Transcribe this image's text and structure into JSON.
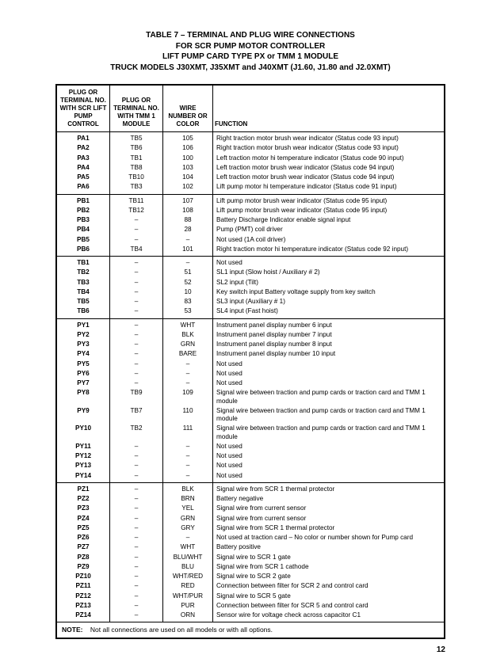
{
  "title": {
    "line1": "TABLE 7 – TERMINAL AND PLUG WIRE CONNECTIONS",
    "line2": "FOR SCR PUMP MOTOR CONTROLLER",
    "line3": "LIFT PUMP CARD TYPE PX or TMM 1 MODULE",
    "line4": "TRUCK MODELS J30XMT, J35XMT and J40XMT (J1.60, J1.80 and J2.0XMT)"
  },
  "headers": {
    "c1": "PLUG OR TERMINAL NO. WITH SCR LIFT PUMP CONTROL",
    "c2": "PLUG OR TERMINAL NO. WITH TMM 1 MODULE",
    "c3": "WIRE NUMBER OR COLOR",
    "c4": "FUNCTION"
  },
  "sections": [
    [
      {
        "c1": "PA1",
        "c2": "TB5",
        "c3": "105",
        "c4": "Right traction motor brush wear indicator (Status code 93 input)"
      },
      {
        "c1": "PA2",
        "c2": "TB6",
        "c3": "106",
        "c4": "Right traction motor brush wear indicator (Status code 93 input)"
      },
      {
        "c1": "PA3",
        "c2": "TB1",
        "c3": "100",
        "c4": "Left traction motor hi temperature indicator (Status code 90 input)"
      },
      {
        "c1": "PA4",
        "c2": "TB8",
        "c3": "103",
        "c4": "Left traction motor brush wear indicator (Status code 94 input)"
      },
      {
        "c1": "PA5",
        "c2": "TB10",
        "c3": "104",
        "c4": "Left traction motor brush wear indicator (Status code 94 input)"
      },
      {
        "c1": "PA6",
        "c2": "TB3",
        "c3": "102",
        "c4": "Lift pump motor hi temperature indicator (Status code 91 input)"
      }
    ],
    [
      {
        "c1": "PB1",
        "c2": "TB11",
        "c3": "107",
        "c4": "Lift pump motor brush wear indicator (Status code 95 input)"
      },
      {
        "c1": "PB2",
        "c2": "TB12",
        "c3": "108",
        "c4": "Lift pump motor brush wear indicator (Status code 95 input)"
      },
      {
        "c1": "PB3",
        "c2": "–",
        "c3": "88",
        "c4": "Battery Discharge Indicator enable signal input"
      },
      {
        "c1": "PB4",
        "c2": "–",
        "c3": "28",
        "c4": "Pump (PMT) coil driver"
      },
      {
        "c1": "PB5",
        "c2": "–",
        "c3": "–",
        "c4": "Not used (1A coil driver)"
      },
      {
        "c1": "PB6",
        "c2": "TB4",
        "c3": "101",
        "c4": "Right traction motor hi temperature indicator (Status code 92 input)"
      }
    ],
    [
      {
        "c1": "TB1",
        "c2": "–",
        "c3": "–",
        "c4": "Not used"
      },
      {
        "c1": "TB2",
        "c2": "–",
        "c3": "51",
        "c4": "SL1 input (Slow hoist / Auxiliary # 2)"
      },
      {
        "c1": "TB3",
        "c2": "–",
        "c3": "52",
        "c4": "SL2 input (Tilt)"
      },
      {
        "c1": "TB4",
        "c2": "–",
        "c3": "10",
        "c4": "Key switch input Battery voltage supply from key switch"
      },
      {
        "c1": "TB5",
        "c2": "–",
        "c3": "83",
        "c4": "SL3 input (Auxiliary # 1)"
      },
      {
        "c1": "TB6",
        "c2": "–",
        "c3": "53",
        "c4": "SL4 input (Fast hoist)"
      }
    ],
    [
      {
        "c1": "PY1",
        "c2": "–",
        "c3": "WHT",
        "c4": "Instrument panel display number 6 input"
      },
      {
        "c1": "PY2",
        "c2": "–",
        "c3": "BLK",
        "c4": "Instrument panel display number 7 input"
      },
      {
        "c1": "PY3",
        "c2": "–",
        "c3": "GRN",
        "c4": "Instrument panel display number 8 input"
      },
      {
        "c1": "PY4",
        "c2": "–",
        "c3": "BARE",
        "c4": "Instrument panel display number 10 input"
      },
      {
        "c1": "PY5",
        "c2": "–",
        "c3": "–",
        "c4": "Not used"
      },
      {
        "c1": "PY6",
        "c2": "–",
        "c3": "–",
        "c4": "Not used"
      },
      {
        "c1": "PY7",
        "c2": "–",
        "c3": "–",
        "c4": "Not used"
      },
      {
        "c1": "PY8",
        "c2": "TB9",
        "c3": "109",
        "c4": "Signal wire between traction and pump cards or traction card and TMM 1 module"
      },
      {
        "c1": "PY9",
        "c2": "TB7",
        "c3": "110",
        "c4": "Signal wire between traction and pump cards or traction card and TMM 1 module"
      },
      {
        "c1": "PY10",
        "c2": "TB2",
        "c3": "111",
        "c4": "Signal wire between traction and pump cards or traction card and TMM 1 module"
      },
      {
        "c1": "PY11",
        "c2": "–",
        "c3": "–",
        "c4": "Not used"
      },
      {
        "c1": "PY12",
        "c2": "–",
        "c3": "–",
        "c4": "Not used"
      },
      {
        "c1": "PY13",
        "c2": "–",
        "c3": "–",
        "c4": "Not used"
      },
      {
        "c1": "PY14",
        "c2": "–",
        "c3": "–",
        "c4": "Not used"
      }
    ],
    [
      {
        "c1": "PZ1",
        "c2": "–",
        "c3": "BLK",
        "c4": "Signal wire from SCR 1 thermal protector"
      },
      {
        "c1": "PZ2",
        "c2": "–",
        "c3": "BRN",
        "c4": "Battery negative"
      },
      {
        "c1": "PZ3",
        "c2": "–",
        "c3": "YEL",
        "c4": "Signal wire from current sensor"
      },
      {
        "c1": "PZ4",
        "c2": "–",
        "c3": "GRN",
        "c4": "Signal wire from current sensor"
      },
      {
        "c1": "PZ5",
        "c2": "–",
        "c3": "GRY",
        "c4": "Signal wire from SCR 1 thermal protector"
      },
      {
        "c1": "PZ6",
        "c2": "–",
        "c3": "–",
        "c4": "Not used at traction card – No color or number shown for Pump card"
      },
      {
        "c1": "PZ7",
        "c2": "–",
        "c3": "WHT",
        "c4": "Battery positive"
      },
      {
        "c1": "PZ8",
        "c2": "–",
        "c3": "BLU/WHT",
        "c4": "Signal wire to SCR 1 gate"
      },
      {
        "c1": "PZ9",
        "c2": "–",
        "c3": "BLU",
        "c4": "Signal wire from SCR 1 cathode"
      },
      {
        "c1": "PZ10",
        "c2": "–",
        "c3": "WHT/RED",
        "c4": "Signal wire to SCR 2 gate"
      },
      {
        "c1": "PZ11",
        "c2": "–",
        "c3": "RED",
        "c4": "Connection between filter for SCR 2 and control card"
      },
      {
        "c1": "PZ12",
        "c2": "–",
        "c3": "WHT/PUR",
        "c4": "Signal wire to SCR 5 gate"
      },
      {
        "c1": "PZ13",
        "c2": "–",
        "c3": "PUR",
        "c4": "Connection between filter for SCR 5 and control card"
      },
      {
        "c1": "PZ14",
        "c2": "–",
        "c3": "ORN",
        "c4": "Sensor wire for voltage check across capacitor C1"
      }
    ]
  ],
  "note_label": "NOTE:",
  "note_text": "Not all connections are used on all models or with all options.",
  "page_number": "12"
}
